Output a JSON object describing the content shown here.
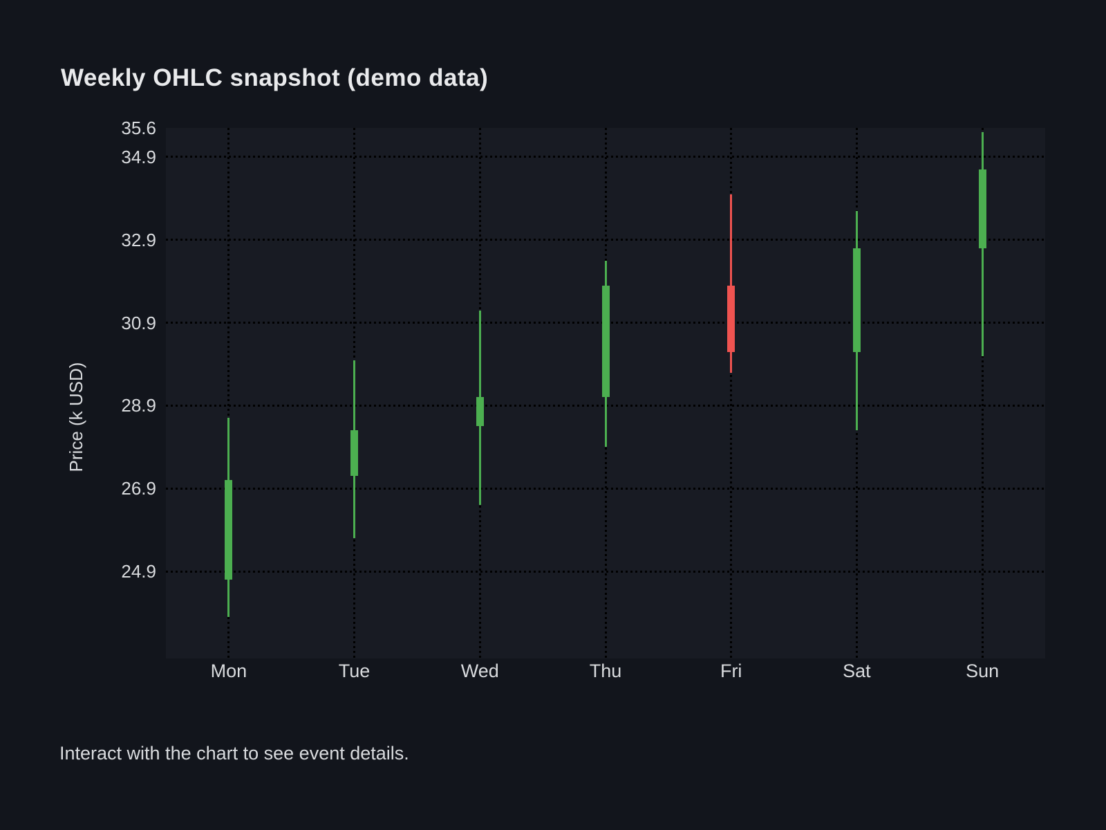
{
  "page": {
    "title": "Weekly OHLC snapshot (demo data)",
    "footer": "Interact with the chart to see event details.",
    "background": "#12151c",
    "plot_background": "#181b23",
    "gridline_color": "#000000",
    "text_color": "#d9dbde"
  },
  "chart_data": {
    "type": "candlestick",
    "title": "Weekly OHLC snapshot (demo data)",
    "xlabel": "",
    "ylabel": "Price (k USD)",
    "categories": [
      "Mon",
      "Tue",
      "Wed",
      "Thu",
      "Fri",
      "Sat",
      "Sun"
    ],
    "series": [
      {
        "name": "Weekly OHLC",
        "points": [
          {
            "day": "Mon",
            "open": 24.7,
            "high": 28.6,
            "low": 23.8,
            "close": 27.1,
            "direction": "up"
          },
          {
            "day": "Tue",
            "open": 27.2,
            "high": 30.0,
            "low": 25.7,
            "close": 28.3,
            "direction": "up"
          },
          {
            "day": "Wed",
            "open": 28.4,
            "high": 31.2,
            "low": 26.5,
            "close": 29.1,
            "direction": "up"
          },
          {
            "day": "Thu",
            "open": 29.1,
            "high": 32.4,
            "low": 27.9,
            "close": 31.8,
            "direction": "up"
          },
          {
            "day": "Fri",
            "open": 31.8,
            "high": 34.0,
            "low": 29.7,
            "close": 30.2,
            "direction": "down"
          },
          {
            "day": "Sat",
            "open": 30.2,
            "high": 33.6,
            "low": 28.3,
            "close": 32.7,
            "direction": "up"
          },
          {
            "day": "Sun",
            "open": 32.7,
            "high": 35.5,
            "low": 30.1,
            "close": 34.6,
            "direction": "up"
          }
        ]
      }
    ],
    "yticks": [
      {
        "label": "35.6",
        "value": 35.6,
        "gridline": false
      },
      {
        "label": "34.9",
        "value": 34.9,
        "gridline": true
      },
      {
        "label": "32.9",
        "value": 32.9,
        "gridline": true
      },
      {
        "label": "30.9",
        "value": 30.9,
        "gridline": true
      },
      {
        "label": "28.9",
        "value": 28.9,
        "gridline": true
      },
      {
        "label": "26.9",
        "value": 26.9,
        "gridline": true
      },
      {
        "label": "24.9",
        "value": 24.9,
        "gridline": true
      }
    ],
    "ylim": [
      22.8,
      35.6
    ],
    "grid": "dotted black, horizontal at yticks and vertical at each category",
    "legend": "none",
    "colors": {
      "up": "#4caf50",
      "down": "#ef5350"
    }
  }
}
